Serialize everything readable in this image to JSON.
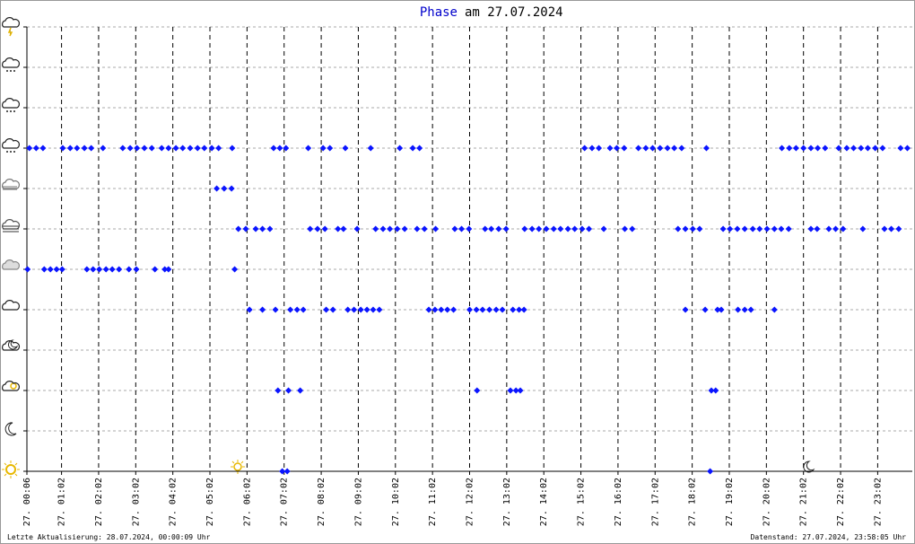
{
  "chart_data": {
    "type": "scatter",
    "title_highlight": "Phase",
    "title": "am 27.07.2024",
    "footer_left": "Letzte Aktualisierung: 28.07.2024, 00:00:09 Uhr",
    "footer_right": "Datenstand: 27.07.2024, 23:58:05 Uhr",
    "color": "#0a14ff",
    "grid": true,
    "xlim": [
      6,
      1438
    ],
    "ylim": [
      0,
      11
    ],
    "yticks": [
      0,
      1,
      2,
      3,
      4,
      5,
      6,
      7,
      8,
      9,
      10,
      11
    ],
    "xticks": [
      {
        "value": 6,
        "label": "27. 00:06"
      },
      {
        "value": 62,
        "label": "27. 01:02"
      },
      {
        "value": 122,
        "label": "27. 02:02"
      },
      {
        "value": 182,
        "label": "27. 03:02"
      },
      {
        "value": 242,
        "label": "27. 04:02"
      },
      {
        "value": 302,
        "label": "27. 05:02"
      },
      {
        "value": 362,
        "label": "27. 06:02"
      },
      {
        "value": 422,
        "label": "27. 07:02"
      },
      {
        "value": 482,
        "label": "27. 08:02"
      },
      {
        "value": 542,
        "label": "27. 09:02"
      },
      {
        "value": 602,
        "label": "27. 10:02"
      },
      {
        "value": 662,
        "label": "27. 11:02"
      },
      {
        "value": 722,
        "label": "27. 12:02"
      },
      {
        "value": 782,
        "label": "27. 13:02"
      },
      {
        "value": 842,
        "label": "27. 14:02"
      },
      {
        "value": 902,
        "label": "27. 15:02"
      },
      {
        "value": 962,
        "label": "27. 16:02"
      },
      {
        "value": 1022,
        "label": "27. 17:02"
      },
      {
        "value": 1082,
        "label": "27. 18:02"
      },
      {
        "value": 1142,
        "label": "27. 19:02"
      },
      {
        "value": 1202,
        "label": "27. 20:02"
      },
      {
        "value": 1262,
        "label": "27. 21:02"
      },
      {
        "value": 1322,
        "label": "27. 22:02"
      },
      {
        "value": 1382,
        "label": "27. 23:02"
      }
    ],
    "x": [
      10,
      21,
      32,
      64,
      76,
      87,
      99,
      110,
      129,
      161,
      173,
      184,
      196,
      208,
      224,
      235,
      247,
      258,
      270,
      282,
      293,
      305,
      316,
      338,
      405,
      415,
      425,
      461,
      485,
      496,
      521,
      562,
      609,
      630,
      641,
      908,
      920,
      931,
      949,
      960,
      972,
      995,
      1007,
      1018,
      1030,
      1042,
      1053,
      1065,
      1105,
      1227,
      1239,
      1250,
      1262,
      1274,
      1285,
      1297,
      1319,
      1332,
      1343,
      1355,
      1366,
      1378,
      1390,
      1419,
      1430,
      313,
      325,
      337,
      348,
      360,
      376,
      387,
      399,
      464,
      476,
      488,
      509,
      518,
      540,
      570,
      582,
      593,
      605,
      617,
      637,
      649,
      667,
      698,
      709,
      721,
      747,
      757,
      769,
      781,
      811,
      823,
      834,
      846,
      858,
      869,
      881,
      892,
      904,
      915,
      939,
      973,
      985,
      1059,
      1071,
      1083,
      1094,
      1132,
      1143,
      1155,
      1167,
      1180,
      1191,
      1203,
      1215,
      1226,
      1238,
      1274,
      1284,
      1303,
      1314,
      1326,
      1358,
      1393,
      1404,
      1416,
      7,
      34,
      44,
      54,
      63,
      103,
      113,
      123,
      134,
      144,
      155,
      171,
      183,
      213,
      229,
      235,
      342,
      366,
      387,
      408,
      432,
      443,
      453,
      490,
      501,
      525,
      535,
      546,
      556,
      566,
      576,
      656,
      666,
      676,
      686,
      696,
      722,
      733,
      743,
      754,
      765,
      775,
      792,
      802,
      810,
      1071,
      1103,
      1123,
      1129,
      1156,
      1167,
      1177,
      1215,
      412,
      429,
      448,
      734,
      788,
      797,
      804,
      1113,
      1120,
      419,
      427,
      1111
    ],
    "values": [
      8,
      8,
      8,
      8,
      8,
      8,
      8,
      8,
      8,
      8,
      8,
      8,
      8,
      8,
      8,
      8,
      8,
      8,
      8,
      8,
      8,
      8,
      8,
      8,
      8,
      8,
      8,
      8,
      8,
      8,
      8,
      8,
      8,
      8,
      8,
      8,
      8,
      8,
      8,
      8,
      8,
      8,
      8,
      8,
      8,
      8,
      8,
      8,
      8,
      8,
      8,
      8,
      8,
      8,
      8,
      8,
      8,
      8,
      8,
      8,
      8,
      8,
      8,
      8,
      8,
      7,
      7,
      7,
      6,
      6,
      6,
      6,
      6,
      6,
      6,
      6,
      6,
      6,
      6,
      6,
      6,
      6,
      6,
      6,
      6,
      6,
      6,
      6,
      6,
      6,
      6,
      6,
      6,
      6,
      6,
      6,
      6,
      6,
      6,
      6,
      6,
      6,
      6,
      6,
      6,
      6,
      6,
      6,
      6,
      6,
      6,
      6,
      6,
      6,
      6,
      6,
      6,
      6,
      6,
      6,
      6,
      6,
      6,
      6,
      6,
      6,
      6,
      6,
      6,
      6,
      5,
      5,
      5,
      5,
      5,
      5,
      5,
      5,
      5,
      5,
      5,
      5,
      5,
      5,
      5,
      5,
      5,
      4,
      4,
      4,
      4,
      4,
      4,
      4,
      4,
      4,
      4,
      4,
      4,
      4,
      4,
      4,
      4,
      4,
      4,
      4,
      4,
      4,
      4,
      4,
      4,
      4,
      4,
      4,
      4,
      4,
      4,
      4,
      4,
      4,
      4,
      4,
      4,
      2,
      2,
      2,
      2,
      2,
      2,
      2,
      2,
      2,
      0,
      0,
      0
    ]
  }
}
